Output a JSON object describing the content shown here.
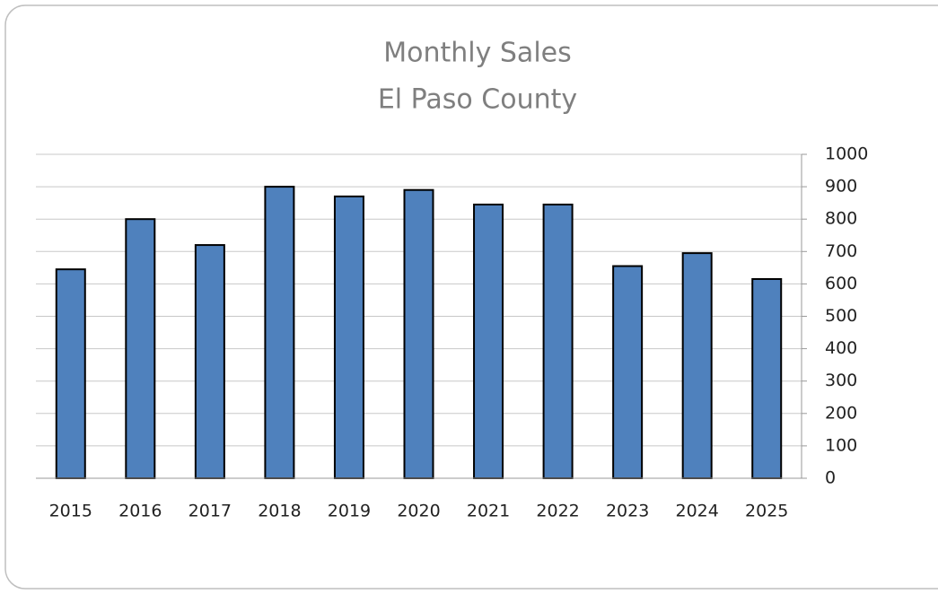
{
  "chart_data": {
    "type": "bar",
    "title": "Monthly Sales",
    "subtitle": "El Paso County",
    "categories": [
      "2015",
      "2016",
      "2017",
      "2018",
      "2019",
      "2020",
      "2021",
      "2022",
      "2023",
      "2024",
      "2025"
    ],
    "values": [
      645,
      800,
      720,
      900,
      870,
      890,
      845,
      845,
      655,
      695,
      615
    ],
    "color": "#4f81bd",
    "ylim": [
      0,
      1000
    ],
    "yticks": [
      0,
      100,
      200,
      300,
      400,
      500,
      600,
      700,
      800,
      900,
      1000
    ],
    "grid": true,
    "y_axis_side": "right"
  }
}
